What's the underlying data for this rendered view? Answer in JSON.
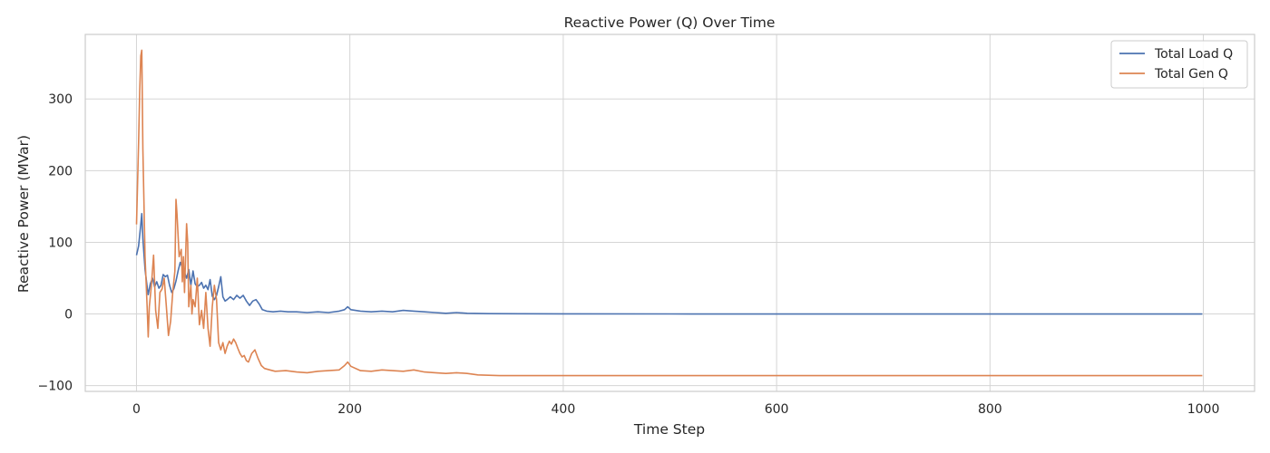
{
  "chart_data": {
    "type": "line",
    "title": "Reactive Power (Q) Over Time",
    "xlabel": "Time Step",
    "ylabel": "Reactive Power (MVar)",
    "xlim": [
      -48,
      1048
    ],
    "ylim": [
      -108,
      390
    ],
    "xticks": [
      0,
      200,
      400,
      600,
      800,
      1000
    ],
    "yticks": [
      -100,
      0,
      100,
      200,
      300
    ],
    "grid": true,
    "legend": "top-right",
    "series": [
      {
        "name": "Total Load Q",
        "color": "#4c72b0",
        "points": [
          [
            0,
            82
          ],
          [
            2,
            95
          ],
          [
            4,
            125
          ],
          [
            5,
            140
          ],
          [
            6,
            105
          ],
          [
            8,
            62
          ],
          [
            10,
            38
          ],
          [
            11,
            27
          ],
          [
            13,
            42
          ],
          [
            15,
            50
          ],
          [
            17,
            38
          ],
          [
            19,
            45
          ],
          [
            21,
            36
          ],
          [
            23,
            40
          ],
          [
            25,
            55
          ],
          [
            27,
            52
          ],
          [
            29,
            54
          ],
          [
            31,
            40
          ],
          [
            33,
            30
          ],
          [
            35,
            35
          ],
          [
            37,
            46
          ],
          [
            39,
            60
          ],
          [
            41,
            72
          ],
          [
            43,
            65
          ],
          [
            45,
            58
          ],
          [
            47,
            50
          ],
          [
            49,
            62
          ],
          [
            51,
            40
          ],
          [
            53,
            60
          ],
          [
            55,
            42
          ],
          [
            57,
            38
          ],
          [
            59,
            40
          ],
          [
            61,
            44
          ],
          [
            63,
            36
          ],
          [
            65,
            40
          ],
          [
            67,
            34
          ],
          [
            69,
            48
          ],
          [
            71,
            25
          ],
          [
            73,
            20
          ],
          [
            75,
            26
          ],
          [
            77,
            38
          ],
          [
            79,
            52
          ],
          [
            81,
            24
          ],
          [
            83,
            18
          ],
          [
            85,
            20
          ],
          [
            88,
            24
          ],
          [
            91,
            20
          ],
          [
            94,
            26
          ],
          [
            97,
            22
          ],
          [
            100,
            26
          ],
          [
            103,
            18
          ],
          [
            106,
            12
          ],
          [
            109,
            18
          ],
          [
            112,
            20
          ],
          [
            115,
            14
          ],
          [
            118,
            6
          ],
          [
            122,
            4
          ],
          [
            128,
            3
          ],
          [
            135,
            4
          ],
          [
            142,
            3
          ],
          [
            150,
            3
          ],
          [
            160,
            2
          ],
          [
            170,
            3
          ],
          [
            180,
            2
          ],
          [
            190,
            4
          ],
          [
            195,
            6
          ],
          [
            198,
            10
          ],
          [
            201,
            6
          ],
          [
            210,
            4
          ],
          [
            220,
            3
          ],
          [
            230,
            4
          ],
          [
            240,
            3
          ],
          [
            250,
            5
          ],
          [
            260,
            4
          ],
          [
            270,
            3
          ],
          [
            280,
            2
          ],
          [
            290,
            1
          ],
          [
            300,
            2
          ],
          [
            310,
            1
          ],
          [
            330,
            0.5
          ],
          [
            360,
            0.3
          ],
          [
            400,
            0.2
          ],
          [
            500,
            0.1
          ],
          [
            600,
            0
          ],
          [
            700,
            0
          ],
          [
            800,
            0
          ],
          [
            900,
            0
          ],
          [
            999,
            0
          ]
        ]
      },
      {
        "name": "Total Gen Q",
        "color": "#dd8452",
        "points": [
          [
            0,
            125
          ],
          [
            2,
            240
          ],
          [
            3,
            310
          ],
          [
            4,
            360
          ],
          [
            5,
            368
          ],
          [
            6,
            230
          ],
          [
            8,
            80
          ],
          [
            10,
            10
          ],
          [
            11,
            -32
          ],
          [
            12,
            10
          ],
          [
            14,
            40
          ],
          [
            16,
            82
          ],
          [
            18,
            5
          ],
          [
            20,
            -20
          ],
          [
            22,
            30
          ],
          [
            24,
            35
          ],
          [
            26,
            50
          ],
          [
            28,
            10
          ],
          [
            30,
            -30
          ],
          [
            32,
            -10
          ],
          [
            34,
            30
          ],
          [
            36,
            60
          ],
          [
            37,
            160
          ],
          [
            38,
            140
          ],
          [
            40,
            80
          ],
          [
            42,
            90
          ],
          [
            43,
            45
          ],
          [
            44,
            80
          ],
          [
            45,
            30
          ],
          [
            47,
            126
          ],
          [
            48,
            100
          ],
          [
            49,
            10
          ],
          [
            51,
            40
          ],
          [
            52,
            0
          ],
          [
            53,
            20
          ],
          [
            55,
            10
          ],
          [
            57,
            50
          ],
          [
            59,
            -15
          ],
          [
            61,
            5
          ],
          [
            63,
            -20
          ],
          [
            65,
            30
          ],
          [
            67,
            -20
          ],
          [
            69,
            -45
          ],
          [
            71,
            10
          ],
          [
            73,
            40
          ],
          [
            75,
            20
          ],
          [
            77,
            -40
          ],
          [
            79,
            -50
          ],
          [
            81,
            -40
          ],
          [
            83,
            -55
          ],
          [
            85,
            -45
          ],
          [
            87,
            -38
          ],
          [
            89,
            -42
          ],
          [
            91,
            -35
          ],
          [
            93,
            -40
          ],
          [
            95,
            -48
          ],
          [
            97,
            -55
          ],
          [
            99,
            -60
          ],
          [
            101,
            -58
          ],
          [
            103,
            -65
          ],
          [
            105,
            -67
          ],
          [
            108,
            -55
          ],
          [
            111,
            -50
          ],
          [
            114,
            -62
          ],
          [
            117,
            -72
          ],
          [
            120,
            -76
          ],
          [
            125,
            -78
          ],
          [
            130,
            -80
          ],
          [
            140,
            -79
          ],
          [
            150,
            -81
          ],
          [
            160,
            -82
          ],
          [
            170,
            -80
          ],
          [
            180,
            -79
          ],
          [
            190,
            -78
          ],
          [
            195,
            -72
          ],
          [
            198,
            -67
          ],
          [
            201,
            -73
          ],
          [
            210,
            -79
          ],
          [
            220,
            -80
          ],
          [
            230,
            -78
          ],
          [
            240,
            -79
          ],
          [
            250,
            -80
          ],
          [
            260,
            -78
          ],
          [
            270,
            -81
          ],
          [
            280,
            -82
          ],
          [
            290,
            -83
          ],
          [
            300,
            -82
          ],
          [
            310,
            -83
          ],
          [
            320,
            -85
          ],
          [
            340,
            -86
          ],
          [
            360,
            -86
          ],
          [
            400,
            -86
          ],
          [
            500,
            -86
          ],
          [
            600,
            -86
          ],
          [
            700,
            -86
          ],
          [
            800,
            -86
          ],
          [
            900,
            -86
          ],
          [
            999,
            -86
          ]
        ]
      }
    ]
  }
}
